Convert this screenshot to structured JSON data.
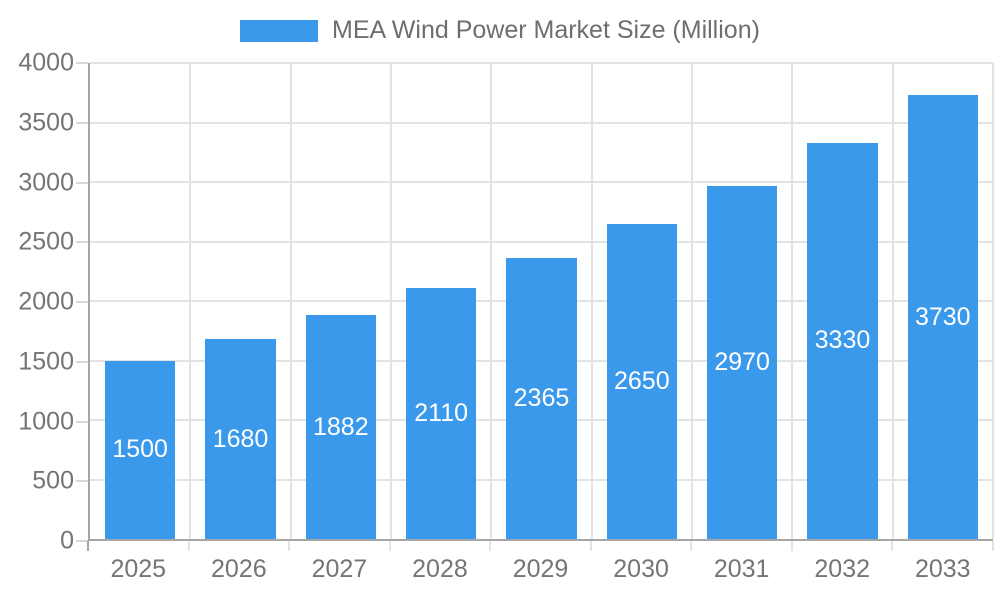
{
  "legend": {
    "label": "MEA Wind Power Market Size (Million)"
  },
  "chart_data": {
    "type": "bar",
    "title": "MEA Wind Power Market Size (Million)",
    "categories": [
      "2025",
      "2026",
      "2027",
      "2028",
      "2029",
      "2030",
      "2031",
      "2032",
      "2033"
    ],
    "values": [
      1500,
      1680,
      1882,
      2110,
      2365,
      2650,
      2970,
      3330,
      3730
    ],
    "xlabel": "",
    "ylabel": "",
    "ylim": [
      0,
      4000
    ],
    "yticks": [
      0,
      500,
      1000,
      1500,
      2000,
      2500,
      3000,
      3500,
      4000
    ],
    "grid": true,
    "legend_position": "top",
    "value_label_position": "inside-center",
    "colors": {
      "bar": "#3B99EC",
      "value_label": "#FFFFFF",
      "axis_text": "#757575",
      "legend_text": "#6E6E6E",
      "grid_line": "#E3E3E3",
      "axis_line": "#A5A5A5",
      "y_tick": "#D8D8D8",
      "background": "#FFFFFF"
    }
  }
}
